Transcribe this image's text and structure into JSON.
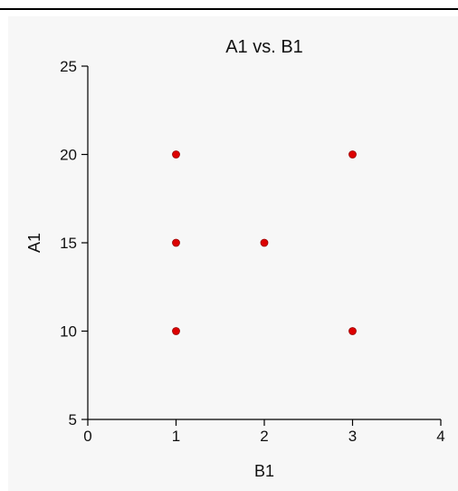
{
  "chart_data": {
    "type": "scatter",
    "title": "A1 vs. B1",
    "xlabel": "B1",
    "ylabel": "A1",
    "xlim": [
      0,
      4
    ],
    "ylim": [
      5,
      25
    ],
    "xticks": [
      "0",
      "1",
      "2",
      "3",
      "4"
    ],
    "yticks": [
      "5",
      "10",
      "15",
      "20",
      "25"
    ],
    "grid": false,
    "legend": "none",
    "series": [
      {
        "color": "#dd0000",
        "points": [
          {
            "x": 1,
            "y": 20
          },
          {
            "x": 1,
            "y": 15
          },
          {
            "x": 1,
            "y": 10
          },
          {
            "x": 2,
            "y": 15
          },
          {
            "x": 3,
            "y": 20
          },
          {
            "x": 3,
            "y": 10
          }
        ]
      }
    ]
  }
}
